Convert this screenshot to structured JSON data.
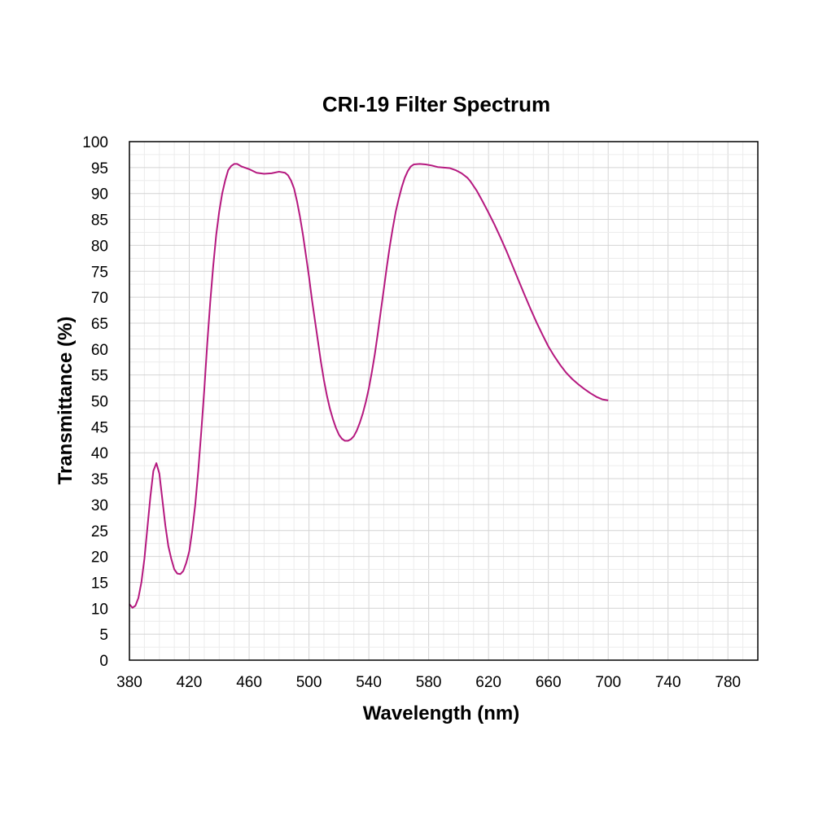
{
  "chart_data": {
    "type": "line",
    "title": "CRI-19 Filter Spectrum",
    "xlabel": "Wavelength (nm)",
    "ylabel": "Transmittance (%)",
    "xlim": [
      380,
      800
    ],
    "ylim": [
      0,
      100
    ],
    "x_ticks": [
      380,
      420,
      460,
      500,
      540,
      580,
      620,
      660,
      700,
      740,
      780
    ],
    "y_ticks": [
      0,
      5,
      10,
      15,
      20,
      25,
      30,
      35,
      40,
      45,
      50,
      55,
      60,
      65,
      70,
      75,
      80,
      85,
      90,
      95,
      100
    ],
    "grid": true,
    "legend": "none",
    "series": [
      {
        "color": "#b5187f",
        "points": [
          [
            380,
            10.8
          ],
          [
            382,
            10.1
          ],
          [
            384,
            10.5
          ],
          [
            386,
            12.0
          ],
          [
            388,
            15.0
          ],
          [
            390,
            19.5
          ],
          [
            392,
            25.5
          ],
          [
            394,
            31.5
          ],
          [
            396,
            36.5
          ],
          [
            398,
            38.0
          ],
          [
            400,
            36.0
          ],
          [
            402,
            31.0
          ],
          [
            404,
            26.0
          ],
          [
            406,
            22.0
          ],
          [
            408,
            19.5
          ],
          [
            410,
            17.5
          ],
          [
            412,
            16.7
          ],
          [
            414,
            16.6
          ],
          [
            416,
            17.2
          ],
          [
            418,
            18.8
          ],
          [
            420,
            21.0
          ],
          [
            422,
            25.0
          ],
          [
            424,
            30.0
          ],
          [
            426,
            36.5
          ],
          [
            428,
            44.0
          ],
          [
            430,
            52.0
          ],
          [
            432,
            61.0
          ],
          [
            434,
            69.0
          ],
          [
            436,
            76.0
          ],
          [
            438,
            82.0
          ],
          [
            440,
            86.5
          ],
          [
            442,
            90.0
          ],
          [
            444,
            92.5
          ],
          [
            446,
            94.5
          ],
          [
            448,
            95.3
          ],
          [
            450,
            95.7
          ],
          [
            452,
            95.7
          ],
          [
            455,
            95.2
          ],
          [
            460,
            94.7
          ],
          [
            465,
            94.0
          ],
          [
            470,
            93.8
          ],
          [
            475,
            93.9
          ],
          [
            480,
            94.2
          ],
          [
            484,
            94.0
          ],
          [
            486,
            93.5
          ],
          [
            488,
            92.5
          ],
          [
            490,
            91.0
          ],
          [
            492,
            88.5
          ],
          [
            494,
            85.5
          ],
          [
            496,
            82.0
          ],
          [
            498,
            78.0
          ],
          [
            500,
            74.0
          ],
          [
            502,
            69.5
          ],
          [
            504,
            65.5
          ],
          [
            506,
            61.5
          ],
          [
            508,
            57.5
          ],
          [
            510,
            54.0
          ],
          [
            512,
            51.0
          ],
          [
            514,
            48.5
          ],
          [
            516,
            46.5
          ],
          [
            518,
            44.8
          ],
          [
            520,
            43.5
          ],
          [
            522,
            42.7
          ],
          [
            524,
            42.3
          ],
          [
            526,
            42.3
          ],
          [
            528,
            42.6
          ],
          [
            530,
            43.2
          ],
          [
            532,
            44.3
          ],
          [
            534,
            45.8
          ],
          [
            536,
            47.6
          ],
          [
            538,
            49.8
          ],
          [
            540,
            52.4
          ],
          [
            542,
            55.5
          ],
          [
            544,
            59.0
          ],
          [
            546,
            63.0
          ],
          [
            548,
            67.3
          ],
          [
            550,
            71.5
          ],
          [
            552,
            75.8
          ],
          [
            554,
            79.8
          ],
          [
            556,
            83.3
          ],
          [
            558,
            86.5
          ],
          [
            560,
            89.0
          ],
          [
            562,
            91.2
          ],
          [
            564,
            93.0
          ],
          [
            566,
            94.3
          ],
          [
            568,
            95.2
          ],
          [
            570,
            95.6
          ],
          [
            574,
            95.7
          ],
          [
            578,
            95.6
          ],
          [
            582,
            95.4
          ],
          [
            586,
            95.1
          ],
          [
            590,
            95.0
          ],
          [
            594,
            94.9
          ],
          [
            598,
            94.5
          ],
          [
            602,
            93.9
          ],
          [
            606,
            93.0
          ],
          [
            608,
            92.3
          ],
          [
            612,
            90.6
          ],
          [
            616,
            88.5
          ],
          [
            620,
            86.3
          ],
          [
            624,
            84.0
          ],
          [
            628,
            81.5
          ],
          [
            632,
            78.9
          ],
          [
            636,
            76.1
          ],
          [
            640,
            73.3
          ],
          [
            644,
            70.5
          ],
          [
            648,
            67.8
          ],
          [
            652,
            65.2
          ],
          [
            656,
            62.8
          ],
          [
            660,
            60.5
          ],
          [
            664,
            58.6
          ],
          [
            668,
            56.9
          ],
          [
            672,
            55.4
          ],
          [
            676,
            54.2
          ],
          [
            680,
            53.2
          ],
          [
            684,
            52.3
          ],
          [
            688,
            51.5
          ],
          [
            692,
            50.8
          ],
          [
            696,
            50.3
          ],
          [
            700,
            50.1
          ]
        ]
      }
    ]
  }
}
